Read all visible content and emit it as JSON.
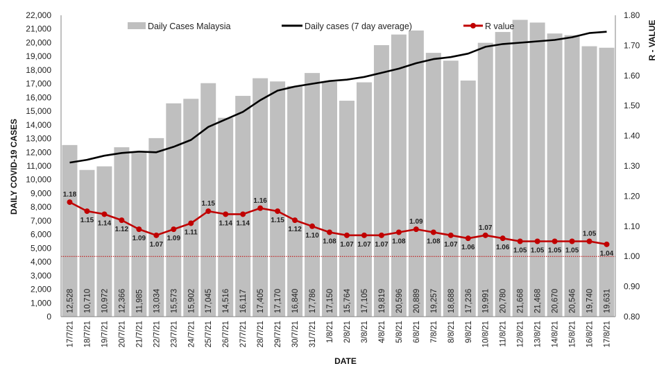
{
  "chart_data": {
    "type": "bar",
    "categories": [
      "17/7/21",
      "18/7/21",
      "19/7/21",
      "20/7/21",
      "21/7/21",
      "22/7/21",
      "23/7/21",
      "24/7/21",
      "25/7/21",
      "26/7/21",
      "27/7/21",
      "28/7/21",
      "29/7/21",
      "30/7/21",
      "31/7/21",
      "1/8/21",
      "2/8/21",
      "3/8/21",
      "4/8/21",
      "5/8/21",
      "6/8/21",
      "7/8/21",
      "8/8/21",
      "9/8/21",
      "10/8/21",
      "11/8/21",
      "12/8/21",
      "13/8/21",
      "14/8/21",
      "15/8/21",
      "16/8/21",
      "17/8/21"
    ],
    "series": [
      {
        "name": "Daily Cases Malaysia",
        "kind": "bar",
        "axis": "left",
        "color": "#bfbfbf",
        "values": [
          12528,
          10710,
          10972,
          12366,
          11985,
          13034,
          15573,
          15902,
          17045,
          14516,
          16117,
          17405,
          17170,
          16840,
          17786,
          17150,
          15764,
          17105,
          19819,
          20596,
          20889,
          19257,
          18688,
          17236,
          19991,
          20780,
          21668,
          21468,
          20670,
          20546,
          19740,
          19631
        ],
        "labels": [
          "12,528",
          "10,710",
          "10,972",
          "12,366",
          "11,985",
          "13,034",
          "15,573",
          "15,902",
          "17,045",
          "14,516",
          "16,117",
          "17,405",
          "17,170",
          "16,840",
          "17,786",
          "17,150",
          "15,764",
          "17,105",
          "19,819",
          "20,596",
          "20,889",
          "19,257",
          "18,688",
          "17,236",
          "19,991",
          "20,780",
          "21,668",
          "21,468",
          "20,670",
          "20,546",
          "19,740",
          "19,631"
        ]
      },
      {
        "name": "Daily cases (7 day average)",
        "kind": "line",
        "axis": "left",
        "color": "#000000",
        "values": [
          11250,
          11450,
          11750,
          11950,
          12050,
          12000,
          12400,
          12900,
          13850,
          14400,
          14950,
          15800,
          16500,
          16800,
          17000,
          17200,
          17300,
          17500,
          17800,
          18100,
          18500,
          18800,
          18950,
          19200,
          19700,
          19900,
          20000,
          20100,
          20200,
          20400,
          20700,
          20800
        ]
      },
      {
        "name": "R value",
        "kind": "line-markers",
        "axis": "right",
        "color": "#c00000",
        "values": [
          1.18,
          1.15,
          1.14,
          1.12,
          1.09,
          1.07,
          1.09,
          1.11,
          1.15,
          1.14,
          1.14,
          1.16,
          1.15,
          1.12,
          1.1,
          1.08,
          1.07,
          1.07,
          1.07,
          1.08,
          1.09,
          1.08,
          1.07,
          1.06,
          1.07,
          1.06,
          1.05,
          1.05,
          1.05,
          1.05,
          1.05,
          1.04
        ],
        "labels": [
          "1.18",
          "1.15",
          "1.14",
          "1.12",
          "1.09",
          "1.07",
          "1.09",
          "1.11",
          "1.15",
          "1.14",
          "1.14",
          "1.16",
          "1.15",
          "1.12",
          "1.10",
          "1.08",
          "1.07",
          "1.07",
          "1.07",
          "1.08",
          "1.09",
          "1.08",
          "1.07",
          "1.06",
          "1.07",
          "1.06",
          "1.05",
          "1.05",
          "1.05",
          "1.05",
          "1.05",
          "1.04"
        ]
      }
    ],
    "reference_line": {
      "axis": "right",
      "value": 1.0,
      "color": "#c00000",
      "style": "dotted"
    },
    "title": "",
    "xlabel": "DATE",
    "ylabel": "DAILY COVID-19 CASES",
    "y2label": "R - VALUE",
    "ylim": [
      0,
      22000
    ],
    "ytick_step": 1000,
    "ytick_labels": [
      "0",
      "1,000",
      "2,000",
      "3,000",
      "4,000",
      "5,000",
      "6,000",
      "7,000",
      "8,000",
      "9,000",
      "10,000",
      "11,000",
      "12,000",
      "13,000",
      "14,000",
      "15,000",
      "16,000",
      "17,000",
      "18,000",
      "19,000",
      "20,000",
      "21,000",
      "22,000"
    ],
    "y2lim": [
      0.8,
      1.8
    ],
    "y2tick_labels": [
      "0.80",
      "0.90",
      "1.00",
      "1.10",
      "1.20",
      "1.30",
      "1.40",
      "1.50",
      "1.60",
      "1.70",
      "1.80"
    ],
    "grid": false,
    "legend": {
      "position": "top",
      "entries": [
        "Daily Cases Malaysia",
        "Daily cases (7 day average)",
        "R value"
      ]
    }
  }
}
